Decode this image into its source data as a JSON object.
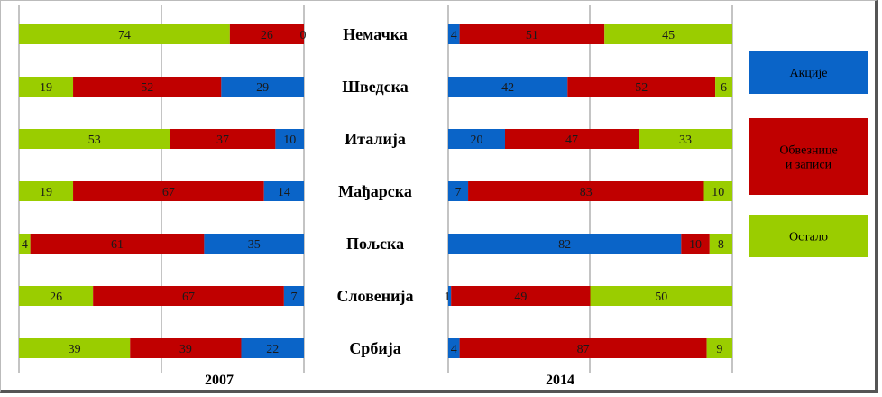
{
  "chart_data": [
    {
      "type": "bar",
      "stacked": true,
      "orientation": "horizontal",
      "percent": true,
      "title": "2007",
      "categories": [
        "Немачка",
        "Шведска",
        "Италија",
        "Мађарска",
        "Пољска",
        "Словенија",
        "Србија"
      ],
      "series": [
        {
          "name": "Остало",
          "values": [
            74,
            19,
            53,
            19,
            4,
            26,
            39
          ]
        },
        {
          "name": "Обвезнице и записи",
          "values": [
            26,
            52,
            37,
            67,
            61,
            67,
            39
          ]
        },
        {
          "name": "Акције",
          "values": [
            0,
            29,
            10,
            14,
            35,
            7,
            22
          ]
        }
      ],
      "xlim": [
        0,
        100
      ],
      "grid": true
    },
    {
      "type": "bar",
      "stacked": true,
      "orientation": "horizontal",
      "percent": true,
      "title": "2014",
      "categories": [
        "Немачка",
        "Шведска",
        "Италија",
        "Мађарска",
        "Пољска",
        "Словенија",
        "Србија"
      ],
      "series": [
        {
          "name": "Акције",
          "values": [
            4,
            42,
            20,
            7,
            82,
            1,
            4
          ]
        },
        {
          "name": "Обвезнице и записи",
          "values": [
            51,
            52,
            47,
            83,
            10,
            49,
            87
          ]
        },
        {
          "name": "Остало",
          "values": [
            45,
            6,
            33,
            10,
            8,
            50,
            9
          ]
        }
      ],
      "xlim": [
        0,
        100
      ],
      "grid": true
    }
  ],
  "legend": {
    "placement": "right",
    "items": [
      {
        "label": "Акције",
        "color": "#0a64c8"
      },
      {
        "label": "Обвезнице и записи",
        "color": "#c00000"
      },
      {
        "label": "Остало",
        "color": "#9acd00"
      }
    ]
  },
  "colors": {
    "Акције": "#0a64c8",
    "Обвезнице и записи": "#c00000",
    "Остало": "#9acd00"
  }
}
